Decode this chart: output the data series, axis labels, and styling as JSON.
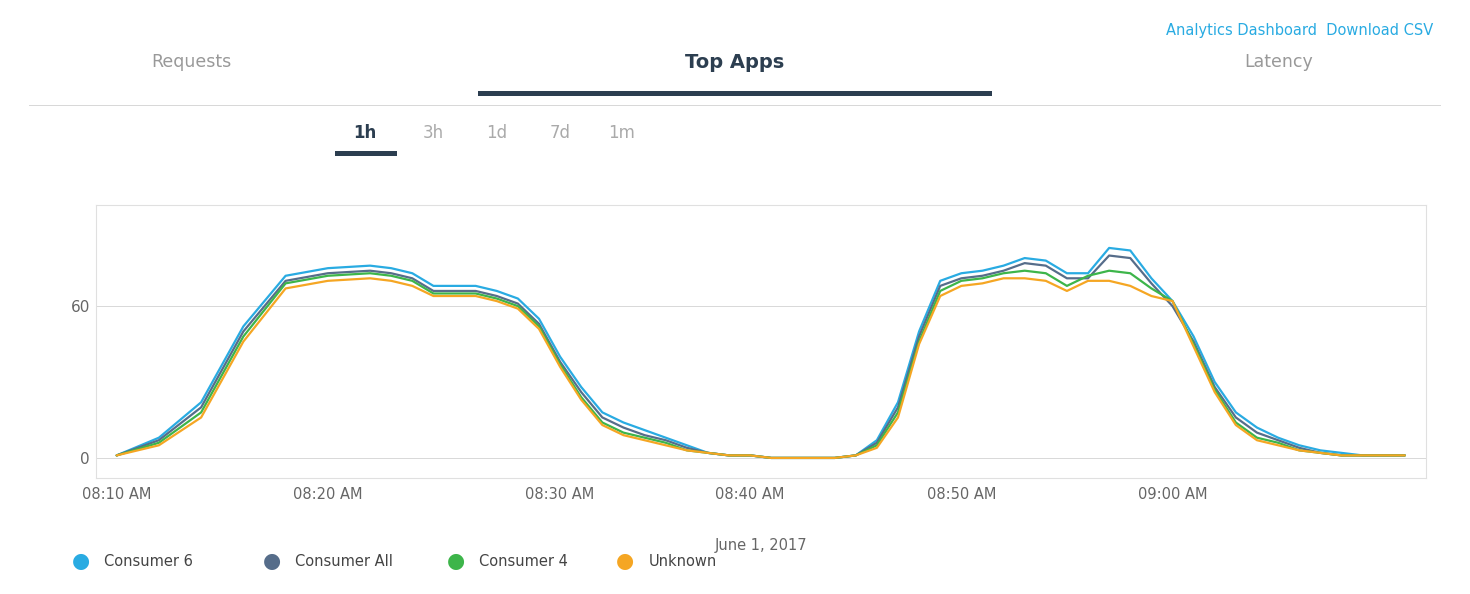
{
  "title": "Top Apps",
  "tab_labels": [
    "1h",
    "3h",
    "1d",
    "7d",
    "1m"
  ],
  "active_tab": "1h",
  "nav_left": "Requests",
  "nav_right": "Latency",
  "top_right_links": "Analytics Dashboard  Download CSV",
  "xlabel": "June 1, 2017",
  "xtick_labels": [
    "08:10 AM",
    "08:20 AM",
    "08:30 AM",
    "08:40 AM",
    "08:50 AM",
    "09:00 AM"
  ],
  "ytick_labels": [
    "0",
    "60"
  ],
  "ytick_values": [
    0,
    60
  ],
  "ylim": [
    -8,
    100
  ],
  "xlim": [
    -1,
    62
  ],
  "series": [
    {
      "name": "Consumer 6",
      "color": "#29abe2",
      "x": [
        0,
        2,
        4,
        6,
        8,
        10,
        12,
        13,
        14,
        15,
        16,
        17,
        18,
        19,
        20,
        21,
        22,
        23,
        24,
        25,
        26,
        27,
        28,
        29,
        30,
        31,
        32,
        33,
        34,
        35,
        36,
        37,
        38,
        39,
        40,
        41,
        42,
        43,
        44,
        45,
        46,
        47,
        48,
        49,
        50,
        51,
        52,
        53,
        54,
        55,
        56,
        57,
        58,
        59,
        60,
        61
      ],
      "y": [
        1,
        8,
        22,
        52,
        72,
        75,
        76,
        75,
        73,
        68,
        68,
        68,
        66,
        63,
        55,
        40,
        28,
        18,
        14,
        11,
        8,
        5,
        2,
        1,
        1,
        0,
        0,
        0,
        0,
        1,
        7,
        22,
        50,
        70,
        73,
        74,
        76,
        79,
        78,
        73,
        73,
        83,
        82,
        71,
        62,
        48,
        30,
        18,
        12,
        8,
        5,
        3,
        2,
        1,
        1,
        1
      ]
    },
    {
      "name": "Consumer All",
      "color": "#566d8a",
      "x": [
        0,
        2,
        4,
        6,
        8,
        10,
        12,
        13,
        14,
        15,
        16,
        17,
        18,
        19,
        20,
        21,
        22,
        23,
        24,
        25,
        26,
        27,
        28,
        29,
        30,
        31,
        32,
        33,
        34,
        35,
        36,
        37,
        38,
        39,
        40,
        41,
        42,
        43,
        44,
        45,
        46,
        47,
        48,
        49,
        50,
        51,
        52,
        53,
        54,
        55,
        56,
        57,
        58,
        59,
        60,
        61
      ],
      "y": [
        1,
        7,
        20,
        50,
        70,
        73,
        74,
        73,
        71,
        66,
        66,
        66,
        64,
        61,
        53,
        38,
        26,
        16,
        12,
        9,
        7,
        4,
        2,
        1,
        1,
        0,
        0,
        0,
        0,
        1,
        6,
        20,
        48,
        68,
        71,
        72,
        74,
        77,
        76,
        71,
        71,
        80,
        79,
        69,
        60,
        46,
        28,
        16,
        10,
        7,
        4,
        2,
        1,
        1,
        1,
        1
      ]
    },
    {
      "name": "Consumer 4",
      "color": "#3db54a",
      "x": [
        0,
        2,
        4,
        6,
        8,
        10,
        12,
        13,
        14,
        15,
        16,
        17,
        18,
        19,
        20,
        21,
        22,
        23,
        24,
        25,
        26,
        27,
        28,
        29,
        30,
        31,
        32,
        33,
        34,
        35,
        36,
        37,
        38,
        39,
        40,
        41,
        42,
        43,
        44,
        45,
        46,
        47,
        48,
        49,
        50,
        51,
        52,
        53,
        54,
        55,
        56,
        57,
        58,
        59,
        60,
        61
      ],
      "y": [
        1,
        6,
        18,
        48,
        69,
        72,
        73,
        72,
        70,
        65,
        65,
        65,
        63,
        60,
        52,
        37,
        24,
        14,
        10,
        8,
        6,
        3,
        2,
        1,
        1,
        0,
        0,
        0,
        0,
        1,
        5,
        18,
        46,
        66,
        70,
        71,
        73,
        74,
        73,
        68,
        72,
        74,
        73,
        67,
        62,
        45,
        27,
        14,
        8,
        6,
        3,
        2,
        1,
        1,
        1,
        1
      ]
    },
    {
      "name": "Unknown",
      "color": "#f5a623",
      "x": [
        0,
        2,
        4,
        6,
        8,
        10,
        12,
        13,
        14,
        15,
        16,
        17,
        18,
        19,
        20,
        21,
        22,
        23,
        24,
        25,
        26,
        27,
        28,
        29,
        30,
        31,
        32,
        33,
        34,
        35,
        36,
        37,
        38,
        39,
        40,
        41,
        42,
        43,
        44,
        45,
        46,
        47,
        48,
        49,
        50,
        51,
        52,
        53,
        54,
        55,
        56,
        57,
        58,
        59,
        60,
        61
      ],
      "y": [
        1,
        5,
        16,
        46,
        67,
        70,
        71,
        70,
        68,
        64,
        64,
        64,
        62,
        59,
        51,
        36,
        23,
        13,
        9,
        7,
        5,
        3,
        2,
        1,
        1,
        0,
        0,
        0,
        0,
        1,
        4,
        16,
        45,
        64,
        68,
        69,
        71,
        71,
        70,
        66,
        70,
        70,
        68,
        64,
        62,
        44,
        26,
        13,
        7,
        5,
        3,
        2,
        1,
        1,
        1,
        1
      ]
    }
  ],
  "bg_color": "#ffffff",
  "chart_bg": "#ffffff",
  "axis_color": "#d8d8d8",
  "text_color": "#666666",
  "tab_active_color": "#2c3e50",
  "tab_inactive_color": "#aaaaaa",
  "nav_color": "#999999",
  "link_color": "#29abe2",
  "title_color": "#2c3e50",
  "tab_underline_color": "#2c3e50",
  "line_width": 1.6,
  "border_color": "#e0e0e0"
}
